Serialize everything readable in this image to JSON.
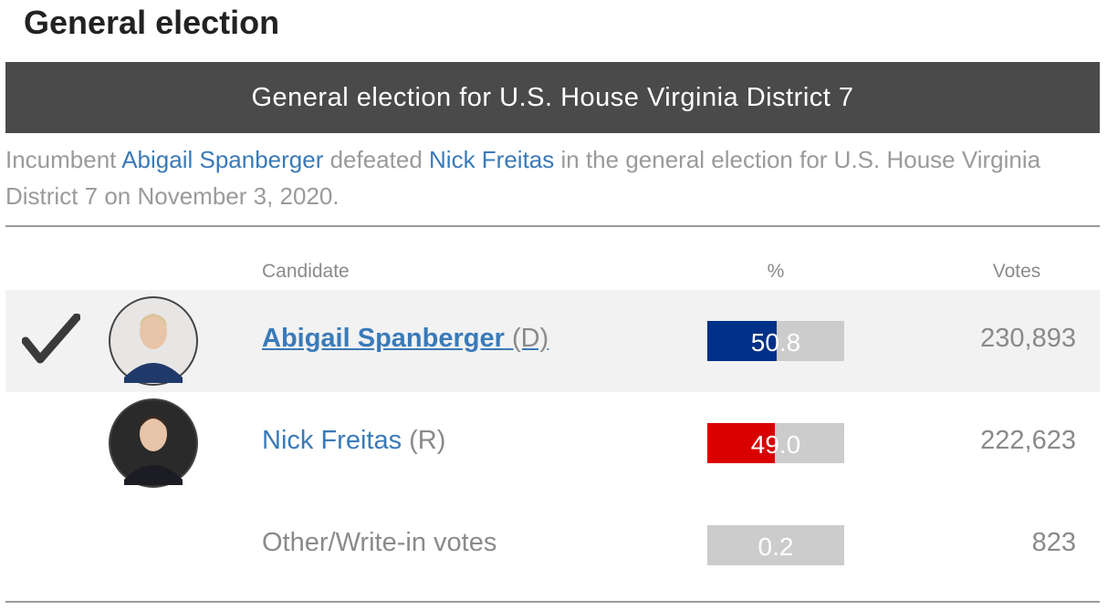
{
  "header": {
    "title": "General election"
  },
  "banner": {
    "title": "General election for U.S. House Virginia District 7"
  },
  "summary": {
    "parts": [
      {
        "text": "Incumbent "
      },
      {
        "text": "Abigail Spanberger",
        "link": true
      },
      {
        "text": " defeated "
      },
      {
        "text": "Nick Freitas",
        "link": true
      },
      {
        "text": " in the general election for U.S. House Virginia District 7 on November 3, 2020."
      }
    ]
  },
  "table": {
    "columns": [
      "Candidate",
      "%",
      "Votes"
    ],
    "rows": [
      {
        "name": "Abigail Spanberger",
        "party": "(D)",
        "percent": 50.8,
        "votes": "230,893",
        "winner": true,
        "color": "#003087"
      },
      {
        "name": "Nick Freitas",
        "party": "(R)",
        "percent": 49.0,
        "value_label": "49.0",
        "votes": "222,623",
        "winner": false,
        "color": "#d90000"
      },
      {
        "name": "Other/Write-in votes",
        "percent": 0.2,
        "votes": "823",
        "winner": false,
        "color": "#cccccc"
      }
    ]
  }
}
